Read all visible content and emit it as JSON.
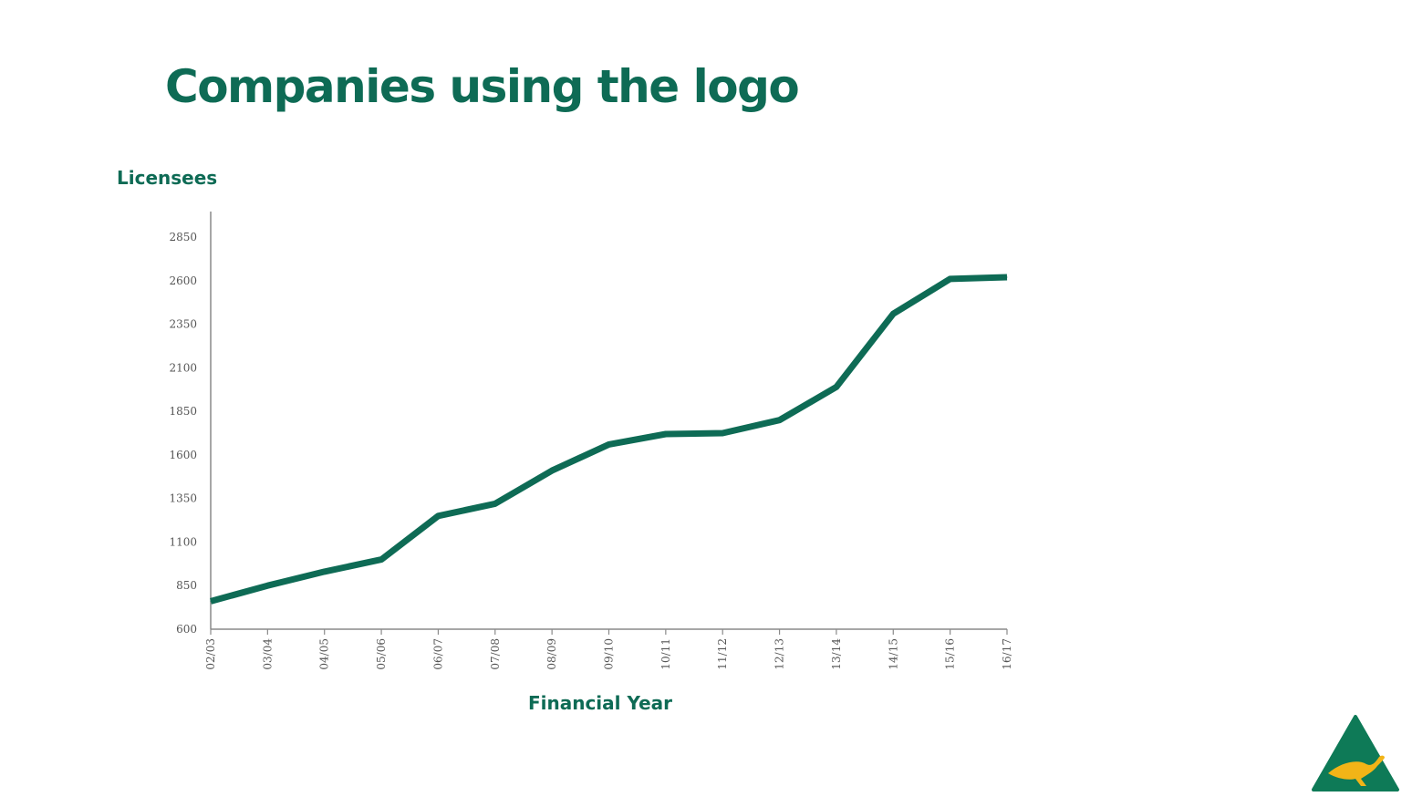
{
  "slide": {
    "title": "Companies using the logo"
  },
  "colors": {
    "accent": "#0e6b55",
    "logo_green": "#0e7a57",
    "logo_gold": "#f2b417"
  },
  "logo": {
    "icon": "kangaroo-triangle-icon"
  },
  "chart_data": {
    "type": "line",
    "ylabel": "Licensees",
    "xlabel": "Financial Year",
    "categories": [
      "02/03",
      "03/04",
      "04/05",
      "05/06",
      "06/07",
      "07/08",
      "08/09",
      "09/10",
      "10/11",
      "11/12",
      "12/13",
      "13/14",
      "14/15",
      "15/16",
      "16/17"
    ],
    "series": [
      {
        "values": [
          760,
          850,
          930,
          1000,
          1250,
          1320,
          1510,
          1660,
          1720,
          1725,
          1800,
          1990,
          2410,
          2610,
          2620
        ]
      }
    ],
    "yticks": [
      600,
      850,
      1100,
      1350,
      1600,
      1850,
      2100,
      2350,
      2600,
      2850
    ],
    "ylim": [
      600,
      2850
    ],
    "grid": false,
    "legend": "none"
  }
}
